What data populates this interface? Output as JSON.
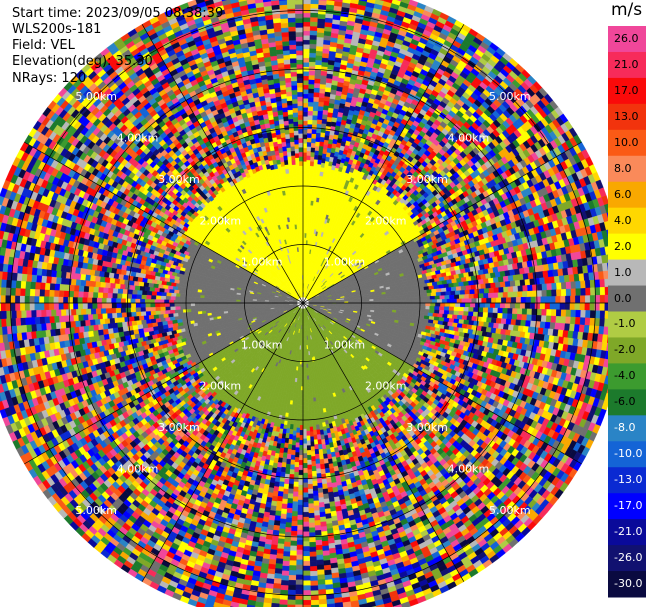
{
  "header": {
    "start_time": "Start time: 2023/09/05 08:38:39",
    "site": "WLS200s-181",
    "field": "Field: VEL",
    "elevation": "Elevation(deg): 35.30",
    "nrays": "NRays: 120"
  },
  "colorbar": {
    "unit": "m/s",
    "ticks": [
      "26.0",
      "21.0",
      "17.0",
      "13.0",
      "10.0",
      "8.0",
      "6.0",
      "4.0",
      "2.0",
      "1.0",
      "0.0",
      "-1.0",
      "-2.0",
      "-4.0",
      "-6.0",
      "-8.0",
      "-10.0",
      "-13.0",
      "-17.0",
      "-21.0",
      "-26.0",
      "-30.0"
    ],
    "colors": [
      "#f0479a",
      "#f72b5a",
      "#fa0a0a",
      "#f2330d",
      "#fa5a16",
      "#fa8a5a",
      "#f9a800",
      "#ffd700",
      "#ffff00",
      "#b8b8b8",
      "#707070",
      "#b0cc44",
      "#7fa828",
      "#3c9b2f",
      "#1c7a2c",
      "#2a84c6",
      "#1464d6",
      "#0a2ad2",
      "#0000ff",
      "#0a0a9a",
      "#111170",
      "#0a0a40"
    ]
  },
  "chart_data": {
    "type": "heatmap",
    "title": "",
    "field": "VEL",
    "unit": "m/s",
    "projection": "polar (PPI)",
    "nrays": 120,
    "range_rings": [
      {
        "label": "1.00km",
        "range_km": 1.0
      },
      {
        "label": "2.00km",
        "range_km": 2.0
      },
      {
        "label": "3.00km",
        "range_km": 3.0
      },
      {
        "label": "4.00km",
        "range_km": 4.0
      },
      {
        "label": "5.00km",
        "range_km": 5.0
      }
    ],
    "max_range_km": 5.5,
    "value_range": [
      -30,
      26
    ],
    "regions": [
      {
        "description": "near-range southern sector",
        "range_km": [
          0.2,
          2.2
        ],
        "velocity_mps": -2.0
      },
      {
        "description": "near-range western sector",
        "range_km": [
          0.2,
          2.2
        ],
        "velocity_mps": 0.0
      },
      {
        "description": "near-range northern sector",
        "range_km": [
          0.2,
          2.5
        ],
        "velocity_mps": 2.0
      },
      {
        "description": "far range (noise)",
        "range_km": [
          2.3,
          5.5
        ],
        "velocity_mps": "random"
      }
    ]
  }
}
